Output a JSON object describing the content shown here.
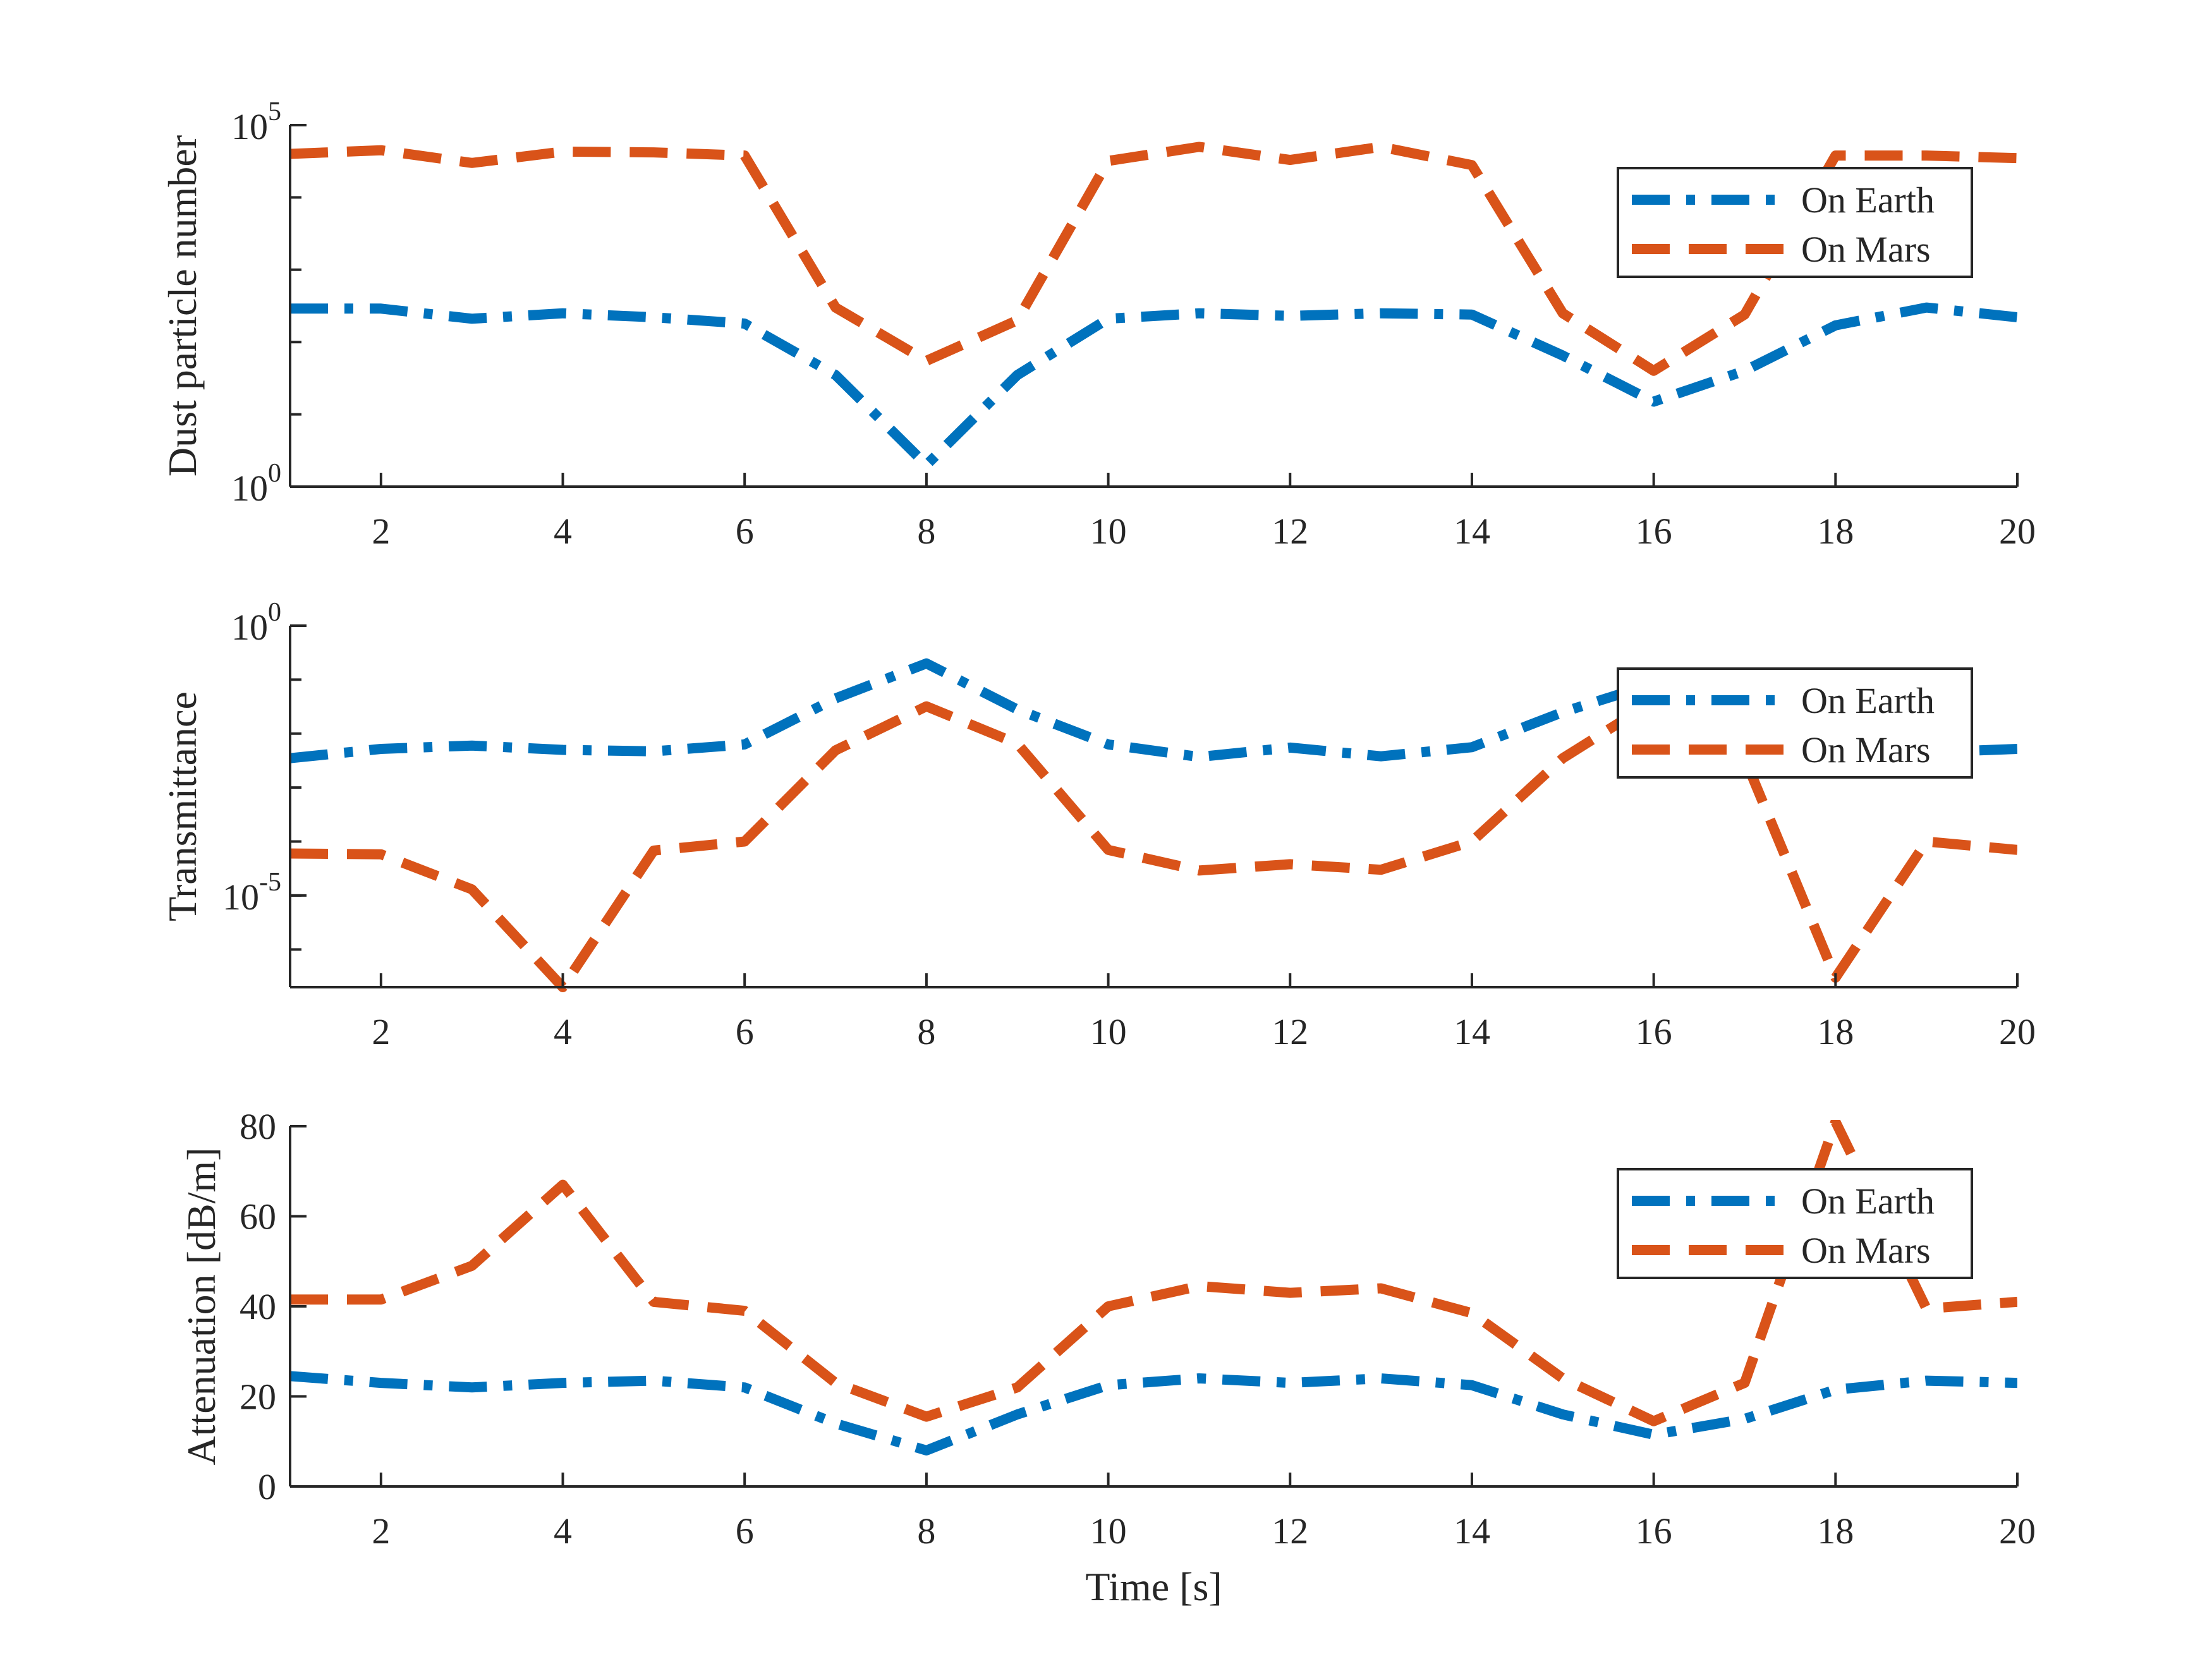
{
  "colors": {
    "earth": "#0072BD",
    "mars": "#D95319",
    "axis": "#262626"
  },
  "chart_data": [
    {
      "type": "line",
      "yscale": "log",
      "ylabel": "Dust particle number",
      "xlabel": "",
      "xlim": [
        1,
        20
      ],
      "ylim": [
        1,
        100000
      ],
      "xticks": [
        2,
        4,
        6,
        8,
        10,
        12,
        14,
        16,
        18,
        20
      ],
      "yticks": [
        {
          "value": 1,
          "base": "10",
          "exp": "0"
        },
        {
          "value": 100000,
          "base": "10",
          "exp": "5"
        }
      ],
      "legend": "top-right",
      "x": [
        1,
        2,
        3,
        4,
        5,
        6,
        7,
        8,
        9,
        10,
        11,
        12,
        13,
        14,
        15,
        16,
        17,
        18,
        19,
        20
      ],
      "series": [
        {
          "name": "On Earth",
          "style": "dash-dot",
          "values": [
            290,
            290,
            210,
            250,
            220,
            180,
            35,
            2,
            35,
            210,
            250,
            230,
            250,
            240,
            65,
            15,
            40,
            170,
            300,
            220
          ]
        },
        {
          "name": "On Mars",
          "style": "dashed",
          "values": [
            40000,
            45000,
            30000,
            43000,
            42000,
            38000,
            300,
            55,
            200,
            32000,
            50000,
            33000,
            50000,
            28000,
            250,
            40,
            240,
            38000,
            38000,
            35000
          ]
        }
      ]
    },
    {
      "type": "line",
      "yscale": "log",
      "ylabel": "Transmittance",
      "xlabel": "",
      "xlim": [
        1,
        20
      ],
      "ylim": [
        2e-07,
        1
      ],
      "xticks": [
        2,
        4,
        6,
        8,
        10,
        12,
        14,
        16,
        18,
        20
      ],
      "yticks": [
        {
          "value": 1e-05,
          "base": "10",
          "exp": "-5"
        },
        {
          "value": 1,
          "base": "10",
          "exp": "0"
        }
      ],
      "legend": "top-right",
      "x": [
        1,
        2,
        3,
        4,
        5,
        6,
        7,
        8,
        9,
        10,
        11,
        12,
        13,
        14,
        15,
        16,
        17,
        18,
        19,
        20
      ],
      "series": [
        {
          "name": "On Earth",
          "style": "dash-dot",
          "values": [
            0.0035,
            0.0052,
            0.006,
            0.005,
            0.0047,
            0.0063,
            0.045,
            0.2,
            0.028,
            0.0063,
            0.0037,
            0.0055,
            0.0038,
            0.0056,
            0.025,
            0.085,
            0.03,
            0.0045,
            0.0045,
            0.0052
          ]
        },
        {
          "name": "On Mars",
          "style": "dashed",
          "values": [
            6e-05,
            5.8e-05,
            1.3e-05,
            2e-07,
            6.8e-05,
            0.0001,
            0.0049,
            0.032,
            0.0065,
            7e-05,
            2.9e-05,
            3.8e-05,
            3e-05,
            0.0001,
            0.0035,
            0.04,
            0.0035,
            3e-07,
            0.0001,
            7e-05
          ]
        }
      ]
    },
    {
      "type": "line",
      "yscale": "linear",
      "ylabel": "Attenuation [dB/m]",
      "xlabel": "Time [s]",
      "xlim": [
        1,
        20
      ],
      "ylim": [
        0,
        80
      ],
      "xticks": [
        2,
        4,
        6,
        8,
        10,
        12,
        14,
        16,
        18,
        20
      ],
      "yticks": [
        {
          "value": 0,
          "label": "0"
        },
        {
          "value": 20,
          "label": "20"
        },
        {
          "value": 40,
          "label": "40"
        },
        {
          "value": 60,
          "label": "60"
        },
        {
          "value": 80,
          "label": "80"
        }
      ],
      "legend": "top-right",
      "x": [
        1,
        2,
        3,
        4,
        5,
        6,
        7,
        8,
        9,
        10,
        11,
        12,
        13,
        14,
        15,
        16,
        17,
        18,
        19,
        20
      ],
      "series": [
        {
          "name": "On Earth",
          "style": "dash-dot",
          "values": [
            24.5,
            23,
            22,
            23,
            23.5,
            22,
            14,
            8,
            16,
            22.5,
            24,
            23,
            24,
            22.5,
            16,
            11.5,
            15,
            21.5,
            23.5,
            23
          ]
        },
        {
          "name": "On Mars",
          "style": "dashed",
          "values": [
            41.5,
            41.5,
            49,
            67,
            41,
            39,
            23,
            15.5,
            22,
            40,
            44.5,
            43,
            44,
            38.5,
            24,
            14.5,
            23,
            81,
            39.5,
            41
          ]
        }
      ]
    }
  ]
}
